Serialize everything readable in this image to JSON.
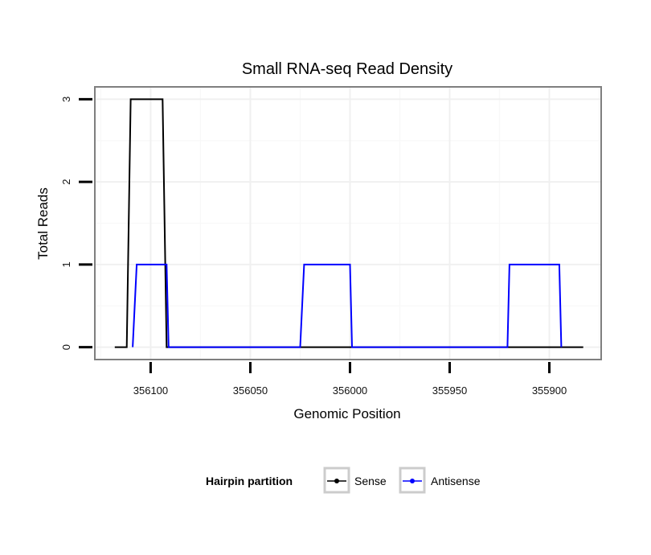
{
  "chart_data": {
    "type": "line",
    "title": "Small RNA-seq Read Density",
    "xlabel": "Genomic Position",
    "ylabel": "Total Reads",
    "x_reversed": true,
    "xlim": [
      356128,
      355874
    ],
    "ylim": [
      -0.15,
      3.15
    ],
    "x_ticks": [
      356100,
      356050,
      356000,
      355950,
      355900
    ],
    "x_tick_labels": [
      "356100",
      "356050",
      "356000",
      "355950",
      "355900"
    ],
    "y_ticks": [
      0,
      1,
      2,
      3
    ],
    "y_tick_labels": [
      "0",
      "1",
      "2",
      "3"
    ],
    "grid": true,
    "legend": {
      "title": "Hairpin partition",
      "placement": "bottom"
    },
    "series": [
      {
        "name": "Sense",
        "color": "#000000",
        "x": [
          356118,
          356112,
          356110,
          356094,
          356092,
          355883
        ],
        "y": [
          0,
          0,
          3,
          3,
          0,
          0
        ]
      },
      {
        "name": "Antisense",
        "color": "#0000ff",
        "x": [
          356109,
          356107,
          356092,
          356091,
          356025,
          356023,
          356000,
          355999,
          355921,
          355920,
          355895,
          355894
        ],
        "y": [
          0,
          1,
          1,
          0,
          0,
          1,
          1,
          0,
          0,
          1,
          1,
          0
        ]
      }
    ]
  }
}
